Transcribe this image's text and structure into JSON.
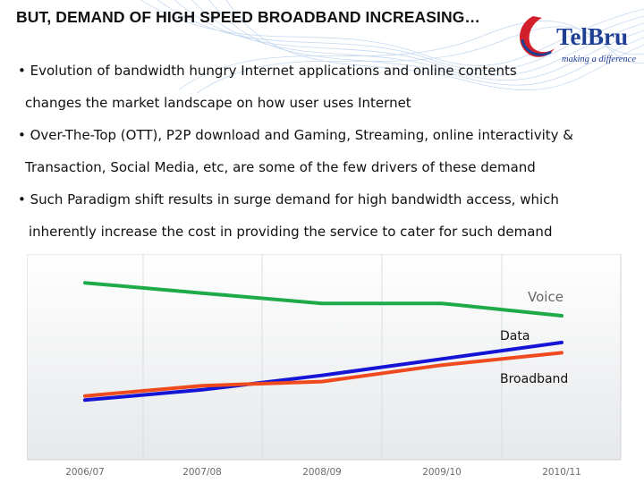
{
  "slide": {
    "title": "BUT, DEMAND OF HIGH SPEED BROADBAND INCREASING…",
    "logo": {
      "brand": "TelBru",
      "tagline": "making a difference",
      "colors": {
        "blue": "#1f3f95",
        "red": "#d21f2b"
      }
    },
    "bullets": [
      {
        "lines": [
          "• Evolution of bandwidth hungry Internet applications and online contents",
          "changes the market landscape on how user uses Internet"
        ]
      },
      {
        "lines": [
          "• Over-The-Top (OTT), P2P download and Gaming, Streaming, online interactivity &",
          "Transaction, Social Media, etc, are some of the few drivers of these demand"
        ]
      },
      {
        "lines": [
          "• Such Paradigm shift results in surge demand for high bandwidth access, which",
          "inherently increase the cost in providing the service to cater for such demand"
        ]
      }
    ]
  },
  "chart_data": {
    "type": "line",
    "title": "",
    "xlabel": "",
    "ylabel": "",
    "categories": [
      "2006/07",
      "2007/08",
      "2008/09",
      "2009/10",
      "2010/11"
    ],
    "ylim": [
      0,
      100
    ],
    "grid": "vertical",
    "legend": "inline labels",
    "series": [
      {
        "name": "Voice",
        "color": "#1faa4a",
        "values": [
          86,
          81,
          76,
          76,
          70
        ]
      },
      {
        "name": "Data",
        "color": "#1414d6",
        "values": [
          29,
          34,
          41,
          49,
          57
        ]
      },
      {
        "name": "Broadband",
        "color": "#ef4a1e",
        "values": [
          31,
          36,
          38,
          46,
          52
        ]
      }
    ]
  }
}
